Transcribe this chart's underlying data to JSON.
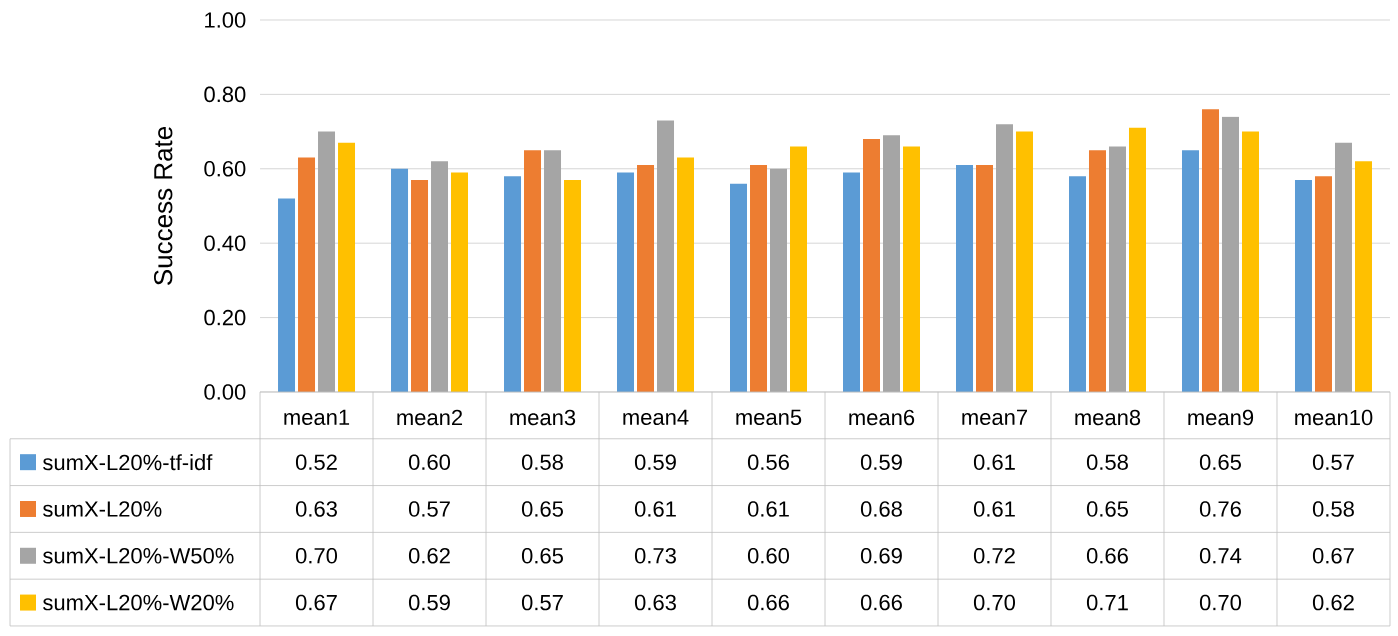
{
  "chart_data": {
    "type": "bar",
    "ylabel": "Success Rate",
    "categories": [
      "mean1",
      "mean2",
      "mean3",
      "mean4",
      "mean5",
      "mean6",
      "mean7",
      "mean8",
      "mean9",
      "mean10"
    ],
    "series": [
      {
        "name": "sumX-L20%-tf-idf",
        "color": "#5b9bd5",
        "values": [
          0.52,
          0.6,
          0.58,
          0.59,
          0.56,
          0.59,
          0.61,
          0.58,
          0.65,
          0.57
        ],
        "value_labels": [
          "0.52",
          "0.60",
          "0.58",
          "0.59",
          "0.56",
          "0.59",
          "0.61",
          "0.58",
          "0.65",
          "0.57"
        ]
      },
      {
        "name": "sumX-L20%",
        "color": "#ed7d31",
        "values": [
          0.63,
          0.57,
          0.65,
          0.61,
          0.61,
          0.68,
          0.61,
          0.65,
          0.76,
          0.58
        ],
        "value_labels": [
          "0.63",
          "0.57",
          "0.65",
          "0.61",
          "0.61",
          "0.68",
          "0.61",
          "0.65",
          "0.76",
          "0.58"
        ]
      },
      {
        "name": "sumX-L20%-W50%",
        "color": "#a5a5a5",
        "values": [
          0.7,
          0.62,
          0.65,
          0.73,
          0.6,
          0.69,
          0.72,
          0.66,
          0.74,
          0.67
        ],
        "value_labels": [
          "0.70",
          "0.62",
          "0.65",
          "0.73",
          "0.60",
          "0.69",
          "0.72",
          "0.66",
          "0.74",
          "0.67"
        ]
      },
      {
        "name": "sumX-L20%-W20%",
        "color": "#ffc000",
        "values": [
          0.67,
          0.59,
          0.57,
          0.63,
          0.66,
          0.66,
          0.7,
          0.71,
          0.7,
          0.62
        ],
        "value_labels": [
          "0.67",
          "0.59",
          "0.57",
          "0.63",
          "0.66",
          "0.66",
          "0.70",
          "0.71",
          "0.70",
          "0.62"
        ]
      }
    ],
    "ylim": [
      0,
      1
    ],
    "yticks": [
      {
        "value": 0,
        "label": "0.00"
      },
      {
        "value": 0.2,
        "label": "0.20"
      },
      {
        "value": 0.4,
        "label": "0.40"
      },
      {
        "value": 0.6,
        "label": "0.60"
      },
      {
        "value": 0.8,
        "label": "0.80"
      },
      {
        "value": 1,
        "label": "1.00"
      }
    ],
    "grid": "y",
    "legend": "bottom"
  }
}
